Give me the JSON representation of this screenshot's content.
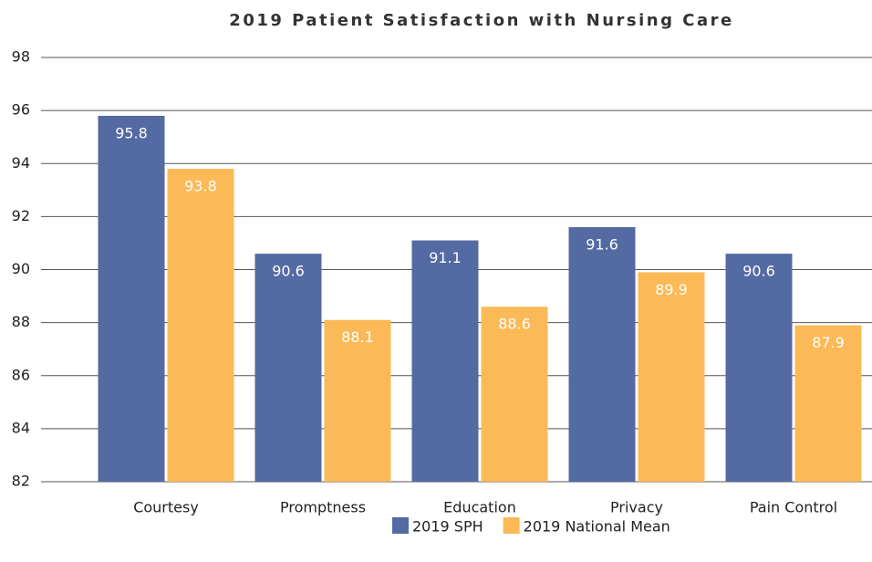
{
  "chart_data": {
    "type": "bar",
    "title": "2019 Patient Satisfaction with Nursing Care",
    "categories": [
      "Courtesy",
      "Promptness",
      "Education",
      "Privacy",
      "Pain Control"
    ],
    "series": [
      {
        "name": "2019 SPH",
        "color": "#546aa3",
        "values": [
          95.8,
          90.6,
          91.1,
          91.6,
          90.6
        ]
      },
      {
        "name": "2019 National Mean",
        "color": "#fbb957",
        "values": [
          93.8,
          88.1,
          88.6,
          89.9,
          87.9
        ]
      }
    ],
    "ylim": [
      82,
      98
    ],
    "yticks": [
      82,
      84,
      86,
      88,
      90,
      92,
      94,
      96,
      98
    ],
    "grid": true,
    "legend": "bottom"
  }
}
